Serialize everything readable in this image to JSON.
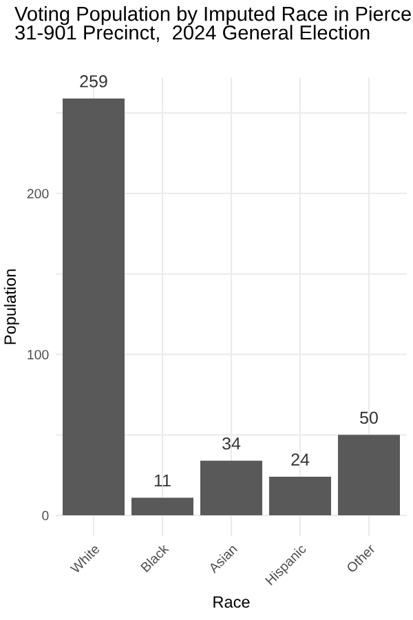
{
  "chart_data": {
    "type": "bar",
    "title": "Voting Population by Imputed Race in Pierce\n31-901 Precinct,  2024 General Election",
    "xlabel": "Race",
    "ylabel": "Population",
    "categories": [
      "White",
      "Black",
      "Asian",
      "Hispanic",
      "Other"
    ],
    "values": [
      259,
      11,
      34,
      24,
      50
    ],
    "color": "#595959",
    "data_labels": true,
    "ylim": [
      -13,
      272
    ],
    "yticks": [
      0,
      {
        "value": 50,
        "label": null
      },
      100,
      {
        "value": 150,
        "label": null
      },
      200,
      {
        "value": 250,
        "label": null
      }
    ],
    "grid": true,
    "legend": false
  }
}
